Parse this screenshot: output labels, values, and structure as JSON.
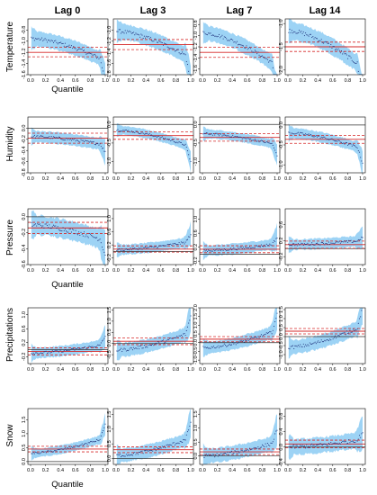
{
  "figure": {
    "columns": [
      "Lag 0",
      "Lag 3",
      "Lag 7",
      "Lag 14"
    ],
    "rows": [
      "Temperature",
      "Humidity",
      "Pressure",
      "Precipitations",
      "Snow"
    ],
    "xlabel": "Quantile",
    "xlabel_rows": [
      0,
      2,
      4
    ],
    "xticks": [
      0.0,
      0.2,
      0.4,
      0.6,
      0.8,
      1.0
    ],
    "xtick_labels": [
      "0.0",
      "0.2",
      "0.4",
      "0.6",
      "0.8",
      "1.0"
    ],
    "colors": {
      "band": "#9dd3f5",
      "points": "#1e2f7a",
      "ref_line": "#d62828",
      "zero_line": "#333333"
    }
  },
  "chart_data": [
    {
      "type": "scatter",
      "row": "Temperature",
      "column": "Lag 0",
      "ylim": [
        -1.6,
        -0.6
      ],
      "yticks": [
        -0.8,
        -1.0,
        -1.2,
        -1.4,
        -1.6
      ],
      "yticklabels": [
        "-0.8",
        "-1.0",
        "-1.2",
        "-1.4",
        "-1.6"
      ],
      "y_start": -0.95,
      "y_end": -1.35,
      "band_half": 0.13,
      "estimate": -1.2,
      "ci": [
        -1.11,
        -1.28
      ],
      "zero": null
    },
    {
      "type": "scatter",
      "row": "Temperature",
      "column": "Lag 3",
      "ylim": [
        -1.8,
        -0.8
      ],
      "yticks": [
        -1.0,
        -1.2,
        -1.4,
        -1.6,
        -1.8
      ],
      "yticklabels": [
        "-1.0",
        "-1.2",
        "-1.4",
        "-1.6",
        "-1.8"
      ],
      "y_start": -1.02,
      "y_end": -1.5,
      "band_half": 0.14,
      "estimate": -1.26,
      "ci": [
        -1.17,
        -1.35
      ],
      "zero": null
    },
    {
      "type": "scatter",
      "row": "Temperature",
      "column": "Lag 7",
      "ylim": [
        -1.7,
        -0.7
      ],
      "yticks": [
        -0.8,
        -1.0,
        -1.2,
        -1.4,
        -1.6
      ],
      "yticklabels": [
        "-0.8",
        "-1.0",
        "-1.2",
        "-1.4",
        "-1.6"
      ],
      "y_start": -0.95,
      "y_end": -1.55,
      "band_half": 0.13,
      "estimate": -1.3,
      "ci": [
        -1.21,
        -1.39
      ],
      "zero": null
    },
    {
      "type": "scatter",
      "row": "Temperature",
      "column": "Lag 14",
      "ylim": [
        -2.1,
        -0.9
      ],
      "yticks": [
        -1.0,
        -1.5,
        -2.0
      ],
      "yticklabels": [
        "-1.0",
        "-1.5",
        "-2.0"
      ],
      "y_start": -1.15,
      "y_end": -1.95,
      "band_half": 0.18,
      "estimate": -1.5,
      "ci": [
        -1.4,
        -1.6
      ],
      "zero": null
    },
    {
      "type": "scatter",
      "row": "Humidity",
      "column": "Lag 0",
      "ylim": [
        -0.8,
        0.2
      ],
      "yticks": [
        0.0,
        -0.2,
        -0.4,
        -0.6,
        -0.8
      ],
      "yticklabels": [
        "0.0",
        "-0.2",
        "-0.4",
        "-0.6",
        "-0.8"
      ],
      "y_start": -0.15,
      "y_end": -0.3,
      "band_half": 0.1,
      "estimate": -0.18,
      "ci": [
        -0.09,
        -0.27
      ],
      "zero": 0.0
    },
    {
      "type": "scatter",
      "row": "Humidity",
      "column": "Lag 3",
      "ylim": [
        -1.3,
        0.2
      ],
      "yticks": [
        0.0,
        -0.5,
        -1.0
      ],
      "yticklabels": [
        "0.0",
        "-0.5",
        "-1.0"
      ],
      "y_start": -0.15,
      "y_end": -0.6,
      "band_half": 0.12,
      "estimate": -0.3,
      "ci": [
        -0.2,
        -0.4
      ],
      "zero": 0.0
    },
    {
      "type": "scatter",
      "row": "Humidity",
      "column": "Lag 7",
      "ylim": [
        -1.3,
        0.2
      ],
      "yticks": [
        0.0,
        -0.5,
        -1.0
      ],
      "yticklabels": [
        "0.0",
        "-0.5",
        "-1.0"
      ],
      "y_start": -0.25,
      "y_end": -0.55,
      "band_half": 0.12,
      "estimate": -0.35,
      "ci": [
        -0.25,
        -0.45
      ],
      "zero": 0.0
    },
    {
      "type": "scatter",
      "row": "Humidity",
      "column": "Lag 14",
      "ylim": [
        -1.2,
        0.2
      ],
      "yticks": [
        0.0,
        -0.5,
        -1.0
      ],
      "yticklabels": [
        "0.0",
        "-0.5",
        "-1.0"
      ],
      "y_start": -0.2,
      "y_end": -0.6,
      "band_half": 0.13,
      "estimate": -0.36,
      "ci": [
        -0.26,
        -0.46
      ],
      "zero": 0.0
    },
    {
      "type": "scatter",
      "row": "Pressure",
      "column": "Lag 0",
      "ylim": [
        -0.6,
        0.1
      ],
      "yticks": [
        0.0,
        -0.2,
        -0.4,
        -0.6
      ],
      "yticklabels": [
        "0.0",
        "-0.2",
        "-0.4",
        "-0.6"
      ],
      "y_start": -0.1,
      "y_end": -0.3,
      "band_half": 0.12,
      "estimate": -0.14,
      "ci": [
        -0.07,
        -0.21
      ],
      "zero": 0.0
    },
    {
      "type": "scatter",
      "row": "Pressure",
      "column": "Lag 3",
      "ylim": [
        -0.4,
        1.3
      ],
      "yticks": [
        -0.2,
        0.2,
        0.6,
        1.0
      ],
      "yticklabels": [
        "-0.2",
        "0.2",
        "0.6",
        "1.0"
      ],
      "y_start": 0.05,
      "y_end": 0.3,
      "band_half": 0.15,
      "estimate": 0.07,
      "ci": [
        0.17,
        -0.02
      ],
      "zero": 0.0
    },
    {
      "type": "scatter",
      "row": "Pressure",
      "column": "Lag 7",
      "ylim": [
        -0.3,
        1.3
      ],
      "yticks": [
        -0.2,
        0.2,
        0.6,
        1.0
      ],
      "yticklabels": [
        "-0.2",
        "0.2",
        "0.6",
        "1.0"
      ],
      "y_start": 0.1,
      "y_end": 0.3,
      "band_half": 0.15,
      "estimate": 0.14,
      "ci": [
        0.24,
        0.04
      ],
      "zero": 0.0
    },
    {
      "type": "scatter",
      "row": "Pressure",
      "column": "Lag 14",
      "ylim": [
        -0.4,
        1.0
      ],
      "yticks": [
        -0.2,
        0.2,
        0.6
      ],
      "yticklabels": [
        "-0.2",
        "0.2",
        "0.6"
      ],
      "y_start": 0.1,
      "y_end": 0.2,
      "band_half": 0.13,
      "estimate": 0.1,
      "ci": [
        0.19,
        0.01
      ],
      "zero": 0.0
    },
    {
      "type": "scatter",
      "row": "Precipitations",
      "column": "Lag 0",
      "ylim": [
        -0.4,
        1.2
      ],
      "yticks": [
        -0.2,
        0.2,
        0.6,
        1.0
      ],
      "yticklabels": [
        "-0.2",
        "0.2",
        "0.6",
        "1.0"
      ],
      "y_start": -0.1,
      "y_end": 0.15,
      "band_half": 0.15,
      "estimate": -0.05,
      "ci": [
        0.05,
        -0.15
      ],
      "zero": 0.0
    },
    {
      "type": "scatter",
      "row": "Precipitations",
      "column": "Lag 3",
      "ylim": [
        -0.9,
        1.6
      ],
      "yticks": [
        -0.5,
        0.0,
        0.5,
        1.0,
        1.5
      ],
      "yticklabels": [
        "-0.5",
        "0.0",
        "0.5",
        "1.0",
        "1.5"
      ],
      "y_start": -0.3,
      "y_end": 0.5,
      "band_half": 0.3,
      "estimate": 0.1,
      "ci": [
        0.25,
        -0.05
      ],
      "zero": 0.0
    },
    {
      "type": "scatter",
      "row": "Precipitations",
      "column": "Lag 7",
      "ylim": [
        -1.2,
        2.0
      ],
      "yticks": [
        -1.0,
        -0.5,
        0.0,
        0.5,
        1.0,
        1.5,
        2.0
      ],
      "yticklabels": [
        "-1.0",
        "-0.5",
        "0.0",
        "0.5",
        "1.0",
        "1.5",
        "2.0"
      ],
      "y_start": -0.3,
      "y_end": 0.7,
      "band_half": 0.35,
      "estimate": 0.2,
      "ci": [
        0.35,
        0.05
      ],
      "zero": 0.0
    },
    {
      "type": "scatter",
      "row": "Precipitations",
      "column": "Lag 14",
      "ylim": [
        -1.5,
        1.6
      ],
      "yticks": [
        -1.0,
        -0.5,
        0.0,
        0.5,
        1.0,
        1.5
      ],
      "yticklabels": [
        "-1.0",
        "-0.5",
        "0.0",
        "0.5",
        "1.0",
        "1.5"
      ],
      "y_start": -0.6,
      "y_end": 0.6,
      "band_half": 0.38,
      "estimate": 0.3,
      "ci": [
        0.45,
        0.15
      ],
      "zero": 0.0
    },
    {
      "type": "scatter",
      "row": "Snow",
      "column": "Lag 0",
      "ylim": [
        -0.1,
        1.9
      ],
      "yticks": [
        0.0,
        0.5,
        1.0,
        1.5
      ],
      "yticklabels": [
        "0.0",
        "0.5",
        "1.0",
        "1.5"
      ],
      "y_start": 0.3,
      "y_end": 0.85,
      "band_half": 0.15,
      "estimate": 0.45,
      "ci": [
        0.55,
        0.35
      ],
      "zero": 0.0
    },
    {
      "type": "scatter",
      "row": "Snow",
      "column": "Lag 3",
      "ylim": [
        -0.2,
        1.7
      ],
      "yticks": [
        0.0,
        0.5,
        1.0,
        1.5
      ],
      "yticklabels": [
        "0.0",
        "0.5",
        "1.0",
        "1.5"
      ],
      "y_start": 0.1,
      "y_end": 0.7,
      "band_half": 0.22,
      "estimate": 0.3,
      "ci": [
        0.4,
        0.2
      ],
      "zero": 0.0
    },
    {
      "type": "scatter",
      "row": "Snow",
      "column": "Lag 7",
      "ylim": [
        -0.3,
        1.7
      ],
      "yticks": [
        0.0,
        0.5,
        1.0,
        1.5
      ],
      "yticklabels": [
        "0.0",
        "0.5",
        "1.0",
        "1.5"
      ],
      "y_start": 0.0,
      "y_end": 0.5,
      "band_half": 0.25,
      "estimate": 0.15,
      "ci": [
        0.25,
        0.05
      ],
      "zero": 0.0
    },
    {
      "type": "scatter",
      "row": "Snow",
      "column": "Lag 14",
      "ylim": [
        -0.45,
        1.0
      ],
      "yticks": [
        -0.4,
        0.0,
        0.4,
        0.8
      ],
      "yticklabels": [
        "-0.4",
        "0.0",
        "0.4",
        "0.8"
      ],
      "y_start": 0.0,
      "y_end": 0.2,
      "band_half": 0.2,
      "estimate": 0.08,
      "ci": [
        0.18,
        -0.02
      ],
      "zero": 0.0
    }
  ]
}
